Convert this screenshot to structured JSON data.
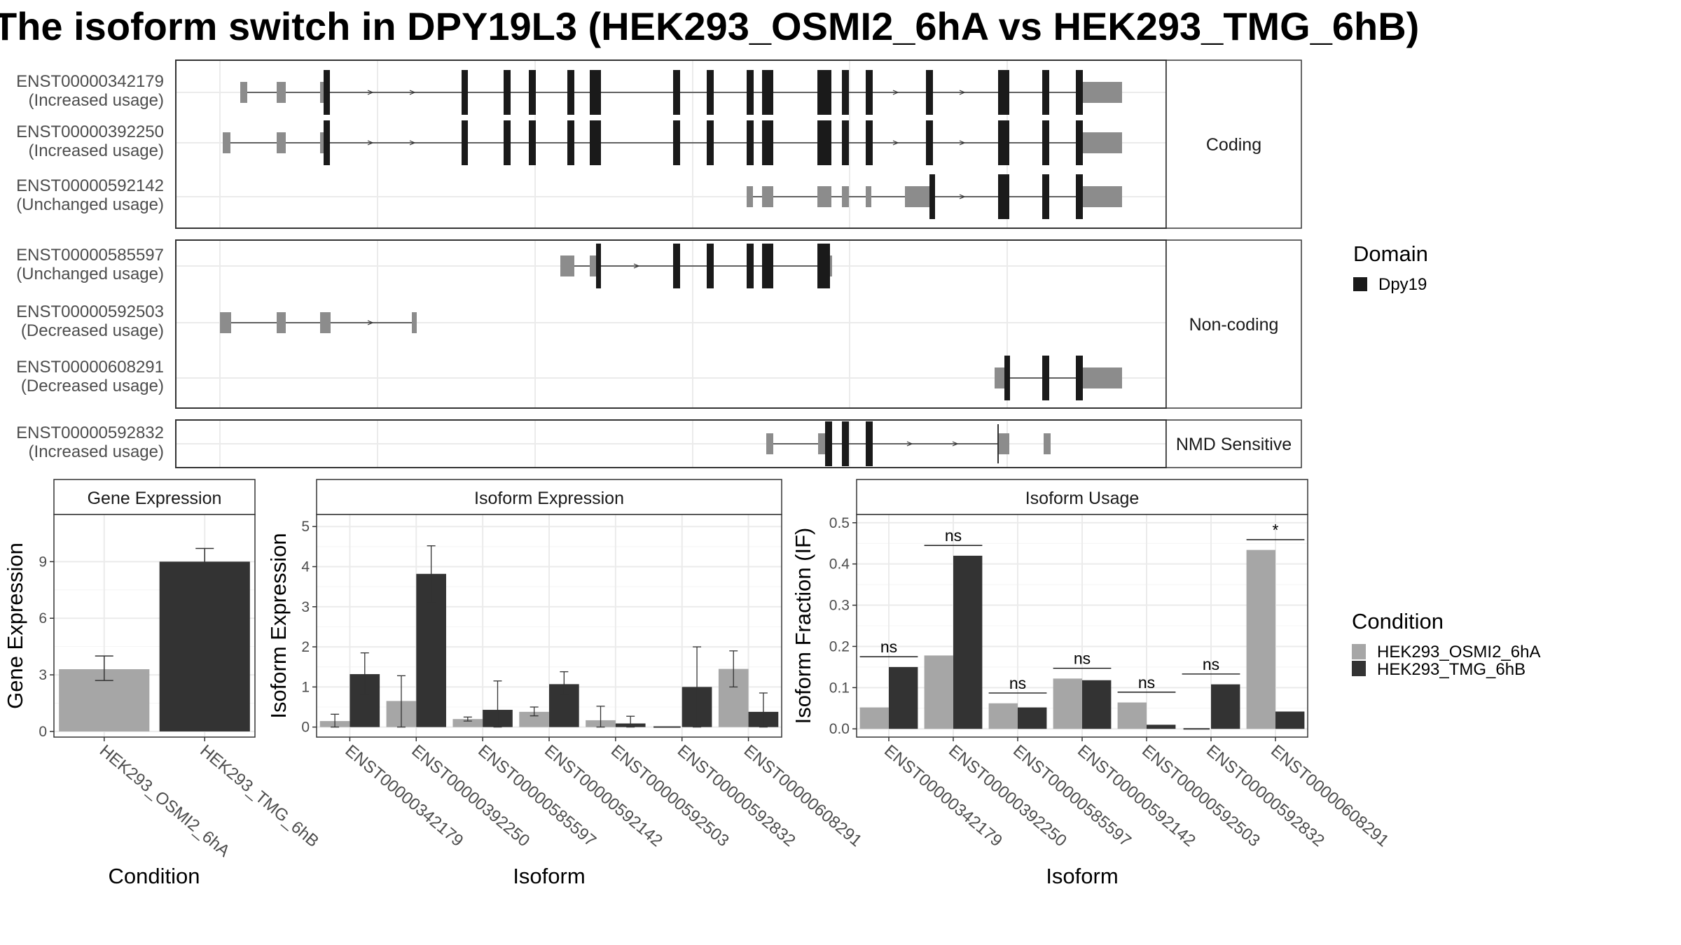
{
  "title": "The isoform switch in DPY19L3 (HEK293_OSMI2_6hA vs HEK293_TMG_6hB)",
  "colors": {
    "condition_a": "#a6a6a6",
    "condition_b": "#333333",
    "domain": "#1a1a1a",
    "exon": "#8c8c8c"
  },
  "structure": {
    "groups": [
      {
        "label": "Coding",
        "transcripts": [
          {
            "id": "ENST00000342179",
            "usage": "(Increased usage)"
          },
          {
            "id": "ENST00000392250",
            "usage": "(Increased usage)"
          },
          {
            "id": "ENST00000592142",
            "usage": "(Unchanged usage)"
          }
        ]
      },
      {
        "label": "Non-coding",
        "transcripts": [
          {
            "id": "ENST00000585597",
            "usage": "(Unchanged usage)"
          },
          {
            "id": "ENST00000592503",
            "usage": "(Decreased usage)"
          },
          {
            "id": "ENST00000608291",
            "usage": "(Decreased usage)"
          }
        ]
      },
      {
        "label": "NMD Sensitive",
        "transcripts": [
          {
            "id": "ENST00000592832",
            "usage": "(Increased usage)"
          }
        ]
      }
    ],
    "legend": {
      "title": "Domain",
      "items": [
        "Dpy19"
      ]
    }
  },
  "chart_data": [
    {
      "type": "bar",
      "title": "Gene Expression",
      "xlabel": "Condition",
      "ylabel": "Gene Expression",
      "categories": [
        "HEK293_OSMI2_6hA",
        "HEK293_TMG_6hB"
      ],
      "values": [
        3.3,
        9.0
      ],
      "error_low": [
        2.7,
        8.3
      ],
      "error_high": [
        4.0,
        9.7
      ],
      "yticks": [
        0,
        3,
        6,
        9
      ],
      "ylim": [
        -0.3,
        11.5
      ]
    },
    {
      "type": "bar",
      "title": "Isoform Expression",
      "xlabel": "Isoform",
      "ylabel": "Isoform Expression",
      "categories": [
        "ENST00000342179",
        "ENST00000392250",
        "ENST00000585597",
        "ENST00000592142",
        "ENST00000592503",
        "ENST00000592832",
        "ENST00000608291"
      ],
      "series": [
        {
          "name": "HEK293_OSMI2_6hA",
          "values": [
            0.15,
            0.65,
            0.2,
            0.38,
            0.17,
            0.0,
            1.45
          ],
          "error_low": [
            0.0,
            0.0,
            0.15,
            0.28,
            0.0,
            0.0,
            1.0
          ],
          "error_high": [
            0.32,
            1.28,
            0.25,
            0.5,
            0.52,
            0.0,
            1.9
          ]
        },
        {
          "name": "HEK293_TMG_6hB",
          "values": [
            1.32,
            3.82,
            0.43,
            1.07,
            0.09,
            1.0,
            0.38
          ],
          "error_low": [
            0.8,
            3.1,
            0.0,
            0.8,
            0.0,
            0.0,
            0.0
          ],
          "error_high": [
            1.85,
            4.52,
            1.15,
            1.38,
            0.27,
            2.0,
            0.85
          ]
        }
      ],
      "yticks": [
        0,
        1,
        2,
        3,
        4,
        5
      ],
      "ylim": [
        -0.25,
        5.3
      ]
    },
    {
      "type": "bar",
      "title": "Isoform Usage",
      "xlabel": "Isoform",
      "ylabel": "Isoform Fraction (IF)",
      "categories": [
        "ENST00000342179",
        "ENST00000392250",
        "ENST00000585597",
        "ENST00000592142",
        "ENST00000592503",
        "ENST00000592832",
        "ENST00000608291"
      ],
      "series": [
        {
          "name": "HEK293_OSMI2_6hA",
          "values": [
            0.052,
            0.178,
            0.062,
            0.122,
            0.064,
            0.0,
            0.434
          ]
        },
        {
          "name": "HEK293_TMG_6hB",
          "values": [
            0.15,
            0.42,
            0.052,
            0.118,
            0.01,
            0.108,
            0.042
          ]
        }
      ],
      "significance": [
        "ns",
        "ns",
        "ns",
        "ns",
        "ns",
        "ns",
        "*"
      ],
      "yticks": [
        0.0,
        0.1,
        0.2,
        0.3,
        0.4,
        0.5
      ],
      "ylim": [
        -0.02,
        0.52
      ]
    }
  ],
  "condition_legend": {
    "title": "Condition",
    "items": [
      "HEK293_OSMI2_6hA",
      "HEK293_TMG_6hB"
    ]
  }
}
